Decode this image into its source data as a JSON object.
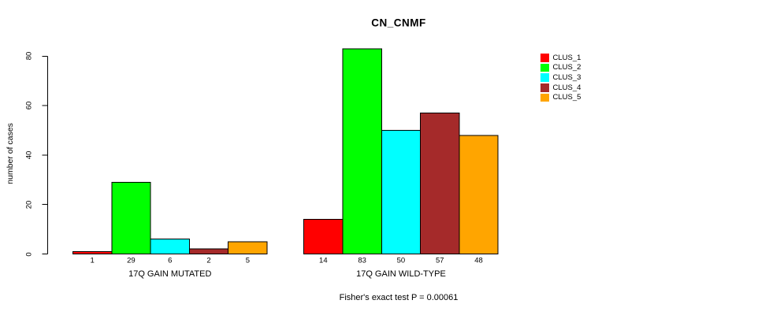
{
  "title": "CN_CNMF",
  "footer": "Fisher's exact test P = 0.00061",
  "y_axis": {
    "label": "number of cases",
    "ticks": [
      0,
      20,
      40,
      60,
      80
    ]
  },
  "legend": {
    "items": [
      {
        "label": "CLUS_1",
        "color": "#FF0000"
      },
      {
        "label": "CLUS_2",
        "color": "#00FF00"
      },
      {
        "label": "CLUS_3",
        "color": "#00FFFF"
      },
      {
        "label": "CLUS_4",
        "color": "#A52A2A"
      },
      {
        "label": "CLUS_5",
        "color": "#FFA500"
      }
    ]
  },
  "chart_data": {
    "type": "bar",
    "title": "CN_CNMF",
    "ylabel": "number of cases",
    "ylim": [
      0,
      80
    ],
    "yticks": [
      0,
      20,
      40,
      60,
      80
    ],
    "grid": false,
    "legend_position": "right",
    "bar_value_labels_shown": true,
    "categories": [
      "17Q GAIN MUTATED",
      "17Q GAIN WILD-TYPE"
    ],
    "series": [
      {
        "name": "CLUS_1",
        "color": "#FF0000",
        "values": [
          1,
          14
        ]
      },
      {
        "name": "CLUS_2",
        "color": "#00FF00",
        "values": [
          29,
          83
        ]
      },
      {
        "name": "CLUS_3",
        "color": "#00FFFF",
        "values": [
          6,
          50
        ]
      },
      {
        "name": "CLUS_4",
        "color": "#A52A2A",
        "values": [
          2,
          57
        ]
      },
      {
        "name": "CLUS_5",
        "color": "#FFA500",
        "values": [
          5,
          48
        ]
      }
    ],
    "annotation": "Fisher's exact test P = 0.00061"
  }
}
